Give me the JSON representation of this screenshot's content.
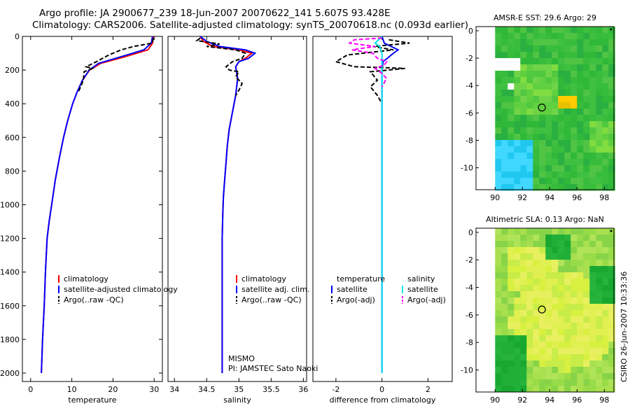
{
  "header": {
    "line1": "Argo profile: JA 2900677_239 18-Jun-2007 20070622_141 5.607S 93.428E",
    "line2": "Climatology: CARS2006. Satellite-adjusted climatology: synTS_20070618.nc (0.093d earlier)"
  },
  "footer_stamp": "CSIRO 26-Jun-2007 10:33:36",
  "colors": {
    "climatology": "#ff0000",
    "satellite": "#0000ff",
    "argo": "#000000",
    "salinity_sat": "#00e5ee",
    "salinity_argo": "#ff00ff",
    "map_background": "#30c030",
    "land": "#ffffff"
  },
  "chart_data": [
    {
      "type": "line",
      "id": "temperature",
      "xlabel": "temperature",
      "ylabel": "",
      "xlim": [
        -2,
        32
      ],
      "ylim": [
        2050,
        0
      ],
      "xticks": [
        0,
        10,
        20,
        30
      ],
      "yticks": [
        0,
        200,
        400,
        600,
        800,
        1000,
        1200,
        1400,
        1600,
        1800,
        2000
      ],
      "legend": [
        "climatology",
        "satellite-adjusted climatology",
        "Argo(..raw -QC)"
      ],
      "series": [
        {
          "name": "climatology",
          "style": "solid",
          "color": "#ff0000",
          "points": [
            [
              29.8,
              0
            ],
            [
              29.6,
              40
            ],
            [
              28.5,
              80
            ],
            [
              23,
              120
            ],
            [
              17,
              160
            ],
            [
              14.3,
              200
            ],
            [
              12.6,
              260
            ],
            [
              11.3,
              330
            ],
            [
              10.2,
              400
            ],
            [
              9.0,
              500
            ],
            [
              8.0,
              600
            ],
            [
              7.0,
              720
            ],
            [
              6.0,
              850
            ],
            [
              5.1,
              1000
            ],
            [
              4.5,
              1100
            ],
            [
              4.0,
              1200
            ],
            [
              3.6,
              1400
            ],
            [
              3.3,
              1600
            ],
            [
              2.9,
              1800
            ],
            [
              2.6,
              2000
            ]
          ]
        },
        {
          "name": "satellite-adjusted climatology",
          "style": "solid",
          "color": "#0000ff",
          "points": [
            [
              29.6,
              0
            ],
            [
              29.3,
              40
            ],
            [
              27.5,
              80
            ],
            [
              22,
              120
            ],
            [
              16.5,
              160
            ],
            [
              14.2,
              200
            ],
            [
              12.6,
              260
            ],
            [
              11.3,
              330
            ],
            [
              10.2,
              400
            ],
            [
              9.0,
              500
            ],
            [
              8.0,
              600
            ],
            [
              7.0,
              720
            ],
            [
              6.0,
              850
            ],
            [
              5.1,
              1000
            ],
            [
              4.5,
              1100
            ],
            [
              4.0,
              1200
            ],
            [
              3.6,
              1400
            ],
            [
              3.3,
              1600
            ],
            [
              2.9,
              1800
            ],
            [
              2.6,
              2000
            ]
          ]
        },
        {
          "name": "Argo(..raw -QC)",
          "style": "dashed",
          "color": "#000000",
          "points": [
            [
              29.8,
              10
            ],
            [
              29.5,
              40
            ],
            [
              25,
              60
            ],
            [
              22,
              80
            ],
            [
              19,
              110
            ],
            [
              16,
              150
            ],
            [
              13.5,
              180
            ],
            [
              15,
              190
            ],
            [
              13,
              210
            ],
            [
              12.8,
              260
            ],
            [
              11.6,
              330
            ]
          ]
        }
      ]
    },
    {
      "type": "line",
      "id": "salinity",
      "xlabel": "salinity",
      "ylabel": "",
      "xlim": [
        33.9,
        36.05
      ],
      "ylim": [
        2050,
        0
      ],
      "xticks": [
        34,
        34.5,
        35,
        35.5,
        36
      ],
      "yticks": [],
      "legend": [
        "climatology",
        "satellite adj. clim.",
        "Argo(..raw -QC)"
      ],
      "annotation": [
        "MISMO",
        "PI: JAMSTEC Sato Naoki"
      ],
      "series": [
        {
          "name": "climatology",
          "style": "solid",
          "color": "#ff0000",
          "points": [
            [
              34.4,
              0
            ],
            [
              34.45,
              30
            ],
            [
              34.6,
              60
            ],
            [
              35.0,
              80
            ],
            [
              35.2,
              100
            ],
            [
              35.1,
              130
            ],
            [
              35.0,
              150
            ],
            [
              34.95,
              180
            ],
            [
              34.98,
              250
            ],
            [
              34.95,
              350
            ],
            [
              34.9,
              450
            ],
            [
              34.85,
              550
            ],
            [
              34.82,
              650
            ],
            [
              34.8,
              750
            ],
            [
              34.78,
              850
            ],
            [
              34.76,
              950
            ],
            [
              34.75,
              1050
            ],
            [
              34.74,
              1200
            ],
            [
              34.74,
              1400
            ],
            [
              34.74,
              1600
            ],
            [
              34.74,
              1800
            ],
            [
              34.74,
              2000
            ]
          ]
        },
        {
          "name": "satellite adj. clim.",
          "style": "solid",
          "color": "#0000ff",
          "points": [
            [
              34.4,
              0
            ],
            [
              34.5,
              30
            ],
            [
              34.7,
              60
            ],
            [
              35.1,
              80
            ],
            [
              35.25,
              100
            ],
            [
              35.15,
              130
            ],
            [
              35.0,
              150
            ],
            [
              34.95,
              180
            ],
            [
              34.98,
              250
            ],
            [
              34.95,
              350
            ],
            [
              34.9,
              450
            ],
            [
              34.85,
              550
            ],
            [
              34.82,
              650
            ],
            [
              34.8,
              750
            ],
            [
              34.78,
              850
            ],
            [
              34.76,
              950
            ],
            [
              34.75,
              1050
            ],
            [
              34.74,
              1200
            ],
            [
              34.74,
              1400
            ],
            [
              34.74,
              1600
            ],
            [
              34.74,
              1800
            ],
            [
              34.74,
              2000
            ]
          ]
        },
        {
          "name": "Argo(..raw -QC)",
          "style": "dashed",
          "color": "#000000",
          "points": [
            [
              34.4,
              10
            ],
            [
              34.35,
              25
            ],
            [
              34.7,
              45
            ],
            [
              34.5,
              60
            ],
            [
              34.95,
              80
            ],
            [
              35.1,
              100
            ],
            [
              35.05,
              130
            ],
            [
              34.9,
              150
            ],
            [
              34.8,
              180
            ],
            [
              34.85,
              200
            ],
            [
              35.0,
              210
            ],
            [
              34.95,
              240
            ],
            [
              35.05,
              280
            ],
            [
              35.0,
              320
            ],
            [
              34.95,
              350
            ]
          ]
        }
      ]
    },
    {
      "type": "line",
      "id": "difference",
      "xlabel": "difference from climatology",
      "ylabel": "",
      "xlim": [
        -3,
        3.05
      ],
      "ylim": [
        2050,
        0
      ],
      "xticks": [
        -2,
        0,
        2
      ],
      "yticks": [],
      "legend": [
        "temperature",
        "satellite",
        "Argo(-adj)",
        "salinity",
        "satellite",
        "Argo(-adj)"
      ],
      "series": [
        {
          "name": "temperature satellite",
          "style": "solid",
          "color": "#0000ff",
          "points": [
            [
              0,
              0
            ],
            [
              0.1,
              40
            ],
            [
              0.4,
              60
            ],
            [
              0.7,
              80
            ],
            [
              0.5,
              100
            ],
            [
              0.05,
              150
            ],
            [
              0,
              200
            ],
            [
              0,
              300
            ],
            [
              0,
              2000
            ]
          ]
        },
        {
          "name": "temperature Argo(-adj)",
          "style": "dashed",
          "color": "#000000",
          "points": [
            [
              0.3,
              20
            ],
            [
              1.2,
              40
            ],
            [
              -0.4,
              60
            ],
            [
              0.5,
              80
            ],
            [
              -1.5,
              110
            ],
            [
              -2.0,
              150
            ],
            [
              -1.2,
              180
            ],
            [
              1.0,
              190
            ],
            [
              -0.5,
              210
            ],
            [
              -0.2,
              260
            ],
            [
              -0.5,
              300
            ],
            [
              -0.2,
              350
            ],
            [
              0,
              400
            ]
          ]
        },
        {
          "name": "salinity satellite",
          "style": "solid",
          "color": "#00e5ee",
          "points": [
            [
              0,
              0
            ],
            [
              -0.3,
              40
            ],
            [
              -0.1,
              60
            ],
            [
              0,
              100
            ],
            [
              0,
              200
            ],
            [
              0,
              2000
            ]
          ]
        },
        {
          "name": "salinity Argo(-adj)",
          "style": "dashed",
          "color": "#ff00ff",
          "points": [
            [
              0,
              10
            ],
            [
              -1.2,
              20
            ],
            [
              -1.4,
              40
            ],
            [
              -0.3,
              60
            ],
            [
              -1.3,
              80
            ],
            [
              -0.4,
              100
            ],
            [
              -0.2,
              130
            ],
            [
              0.2,
              150
            ],
            [
              0.1,
              170
            ],
            [
              -0.3,
              190
            ],
            [
              0,
              220
            ],
            [
              0.2,
              250
            ],
            [
              0,
              300
            ]
          ]
        }
      ]
    },
    {
      "type": "heatmap",
      "id": "sst_map",
      "title": "AMSR-E SST: 29.6 Argo: 29",
      "xlim": [
        88.6,
        98.7
      ],
      "ylim": [
        -11.6,
        0.3
      ],
      "xticks": [
        90,
        92,
        94,
        96,
        98
      ],
      "yticks": [
        0,
        -2,
        -4,
        -6,
        -8,
        -10
      ],
      "argo_position": {
        "lon": 93.428,
        "lat": -5.607
      }
    },
    {
      "type": "heatmap",
      "id": "sla_map",
      "title": "Altimetric SLA: 0.13 Argo: NaN",
      "xlim": [
        88.6,
        98.7
      ],
      "ylim": [
        -11.6,
        0.3
      ],
      "xticks": [
        90,
        92,
        94,
        96,
        98
      ],
      "yticks": [
        0,
        -2,
        -4,
        -6,
        -8,
        -10
      ],
      "argo_position": {
        "lon": 93.428,
        "lat": -5.607
      }
    }
  ]
}
